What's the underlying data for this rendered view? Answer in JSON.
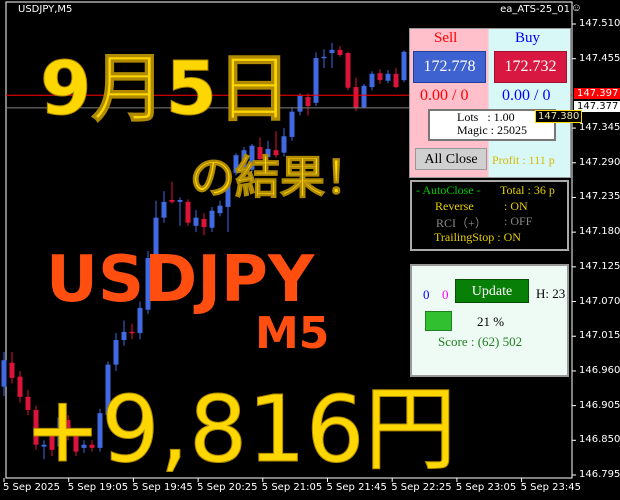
{
  "chart": {
    "symbol": "USDJPY,M5",
    "ea_name": "ea_ATS-25_01",
    "smile_icon": "smiley-icon",
    "price_axis": [
      "147.510",
      "147.455",
      "147.345",
      "147.290",
      "147.235",
      "147.180",
      "147.125",
      "147.070",
      "147.015",
      "146.960",
      "146.905",
      "146.850",
      "146.795"
    ],
    "ylim": [
      146.795,
      147.51
    ],
    "bid_label": "147.397",
    "bid_price": 147.397,
    "ask_label": "147.377",
    "ask_price": 147.377,
    "order_label": "147.380",
    "time_axis": [
      "5 Sep 2025",
      "5 Sep 19:05",
      "5 Sep 19:45",
      "5 Sep 20:25",
      "5 Sep 21:05",
      "5 Sep 21:45",
      "5 Sep 22:25",
      "5 Sep 23:05",
      "5 Sep 23:45"
    ],
    "colors": {
      "bull": "#4169e1",
      "bear": "#dc143c",
      "bid": "#ff0000",
      "ask": "#808080"
    },
    "candles": [
      [
        146.935,
        146.99,
        146.92,
        146.977
      ],
      [
        146.973,
        146.99,
        146.94,
        146.949
      ],
      [
        146.951,
        146.96,
        146.91,
        146.919
      ],
      [
        146.919,
        146.93,
        146.89,
        146.898
      ],
      [
        146.898,
        146.905,
        146.835,
        146.843
      ],
      [
        146.84,
        146.85,
        146.82,
        146.843
      ],
      [
        146.859,
        146.87,
        146.825,
        146.835
      ],
      [
        146.84,
        146.9,
        146.83,
        146.886
      ],
      [
        146.882,
        146.89,
        146.85,
        146.859
      ],
      [
        146.862,
        146.87,
        146.825,
        146.832
      ],
      [
        146.838,
        146.85,
        146.83,
        146.843
      ],
      [
        146.843,
        146.85,
        146.832,
        146.838
      ],
      [
        146.838,
        146.9,
        146.832,
        146.893
      ],
      [
        146.89,
        146.975,
        146.88,
        146.97
      ],
      [
        146.97,
        147.02,
        146.96,
        147.009
      ],
      [
        147.009,
        147.04,
        147.0,
        147.022
      ],
      [
        147.022,
        147.035,
        147.01,
        147.02
      ],
      [
        147.02,
        147.07,
        147.01,
        147.06
      ],
      [
        147.057,
        147.15,
        147.05,
        147.139
      ],
      [
        147.139,
        147.23,
        147.135,
        147.203
      ],
      [
        147.203,
        147.245,
        147.195,
        147.228
      ],
      [
        147.231,
        147.26,
        147.225,
        147.228
      ],
      [
        147.228,
        147.235,
        147.19,
        147.231
      ],
      [
        147.228,
        147.232,
        147.19,
        147.195
      ],
      [
        147.19,
        147.215,
        147.18,
        147.203
      ],
      [
        147.201,
        147.21,
        147.175,
        147.188
      ],
      [
        147.187,
        147.22,
        147.18,
        147.214
      ],
      [
        147.21,
        147.23,
        147.205,
        147.222
      ],
      [
        147.22,
        147.28,
        147.18,
        147.274
      ],
      [
        147.274,
        147.305,
        147.27,
        147.302
      ],
      [
        147.279,
        147.315,
        147.27,
        147.31
      ],
      [
        147.279,
        147.32,
        147.275,
        147.317
      ],
      [
        147.315,
        147.33,
        147.29,
        147.296
      ],
      [
        147.299,
        147.325,
        147.29,
        147.312
      ],
      [
        147.31,
        147.34,
        147.298,
        147.302
      ],
      [
        147.306,
        147.345,
        147.3,
        147.332
      ],
      [
        147.331,
        147.378,
        147.325,
        147.371
      ],
      [
        147.371,
        147.4,
        147.365,
        147.396
      ],
      [
        147.394,
        147.4,
        147.365,
        147.38
      ],
      [
        147.385,
        147.465,
        147.38,
        147.456
      ],
      [
        147.456,
        147.47,
        147.44,
        147.458
      ],
      [
        147.464,
        147.48,
        147.44,
        147.469
      ],
      [
        147.469,
        147.475,
        147.458,
        147.461
      ],
      [
        147.464,
        147.466,
        147.405,
        147.409
      ],
      [
        147.41,
        147.425,
        147.372,
        147.377
      ],
      [
        147.378,
        147.415,
        147.376,
        147.412
      ],
      [
        147.41,
        147.435,
        147.405,
        147.431
      ],
      [
        147.432,
        147.438,
        147.415,
        147.421
      ],
      [
        147.42,
        147.437,
        147.416,
        147.431
      ],
      [
        147.431,
        147.44,
        147.408,
        147.41
      ],
      [
        147.421,
        147.468,
        147.418,
        147.466
      ]
    ]
  },
  "overlay": {
    "date": "9月5日",
    "result": "の結果！",
    "pair": "USDJPY",
    "timeframe": "M5",
    "profit": "+9,816円"
  },
  "trade_panel": {
    "sell_label": "Sell",
    "buy_label": "Buy",
    "sell_price": "172.778",
    "buy_price": "172.732",
    "sell_pos": "0.00 / 0",
    "buy_pos": "0.00 / 0",
    "lots": "Lots   : 1.00",
    "magic": "Magic : 25025",
    "all_close": "All Close",
    "profit": "Profit : 111 p"
  },
  "auto_panel": {
    "title": "- AutoClose -",
    "total": "Total : 36 p",
    "reverse": "Reverse",
    "reverse_val": ": ON",
    "rci": "RCI（+）",
    "rci_val": ": OFF",
    "trailing": "TrailingStop : ON"
  },
  "status_panel": {
    "count_blue": "0",
    "count_magenta": "0",
    "update": "Update",
    "h": "H: 23",
    "progress_pct": 21,
    "progress_label": "21 %",
    "score": "Score : (62) 502"
  }
}
